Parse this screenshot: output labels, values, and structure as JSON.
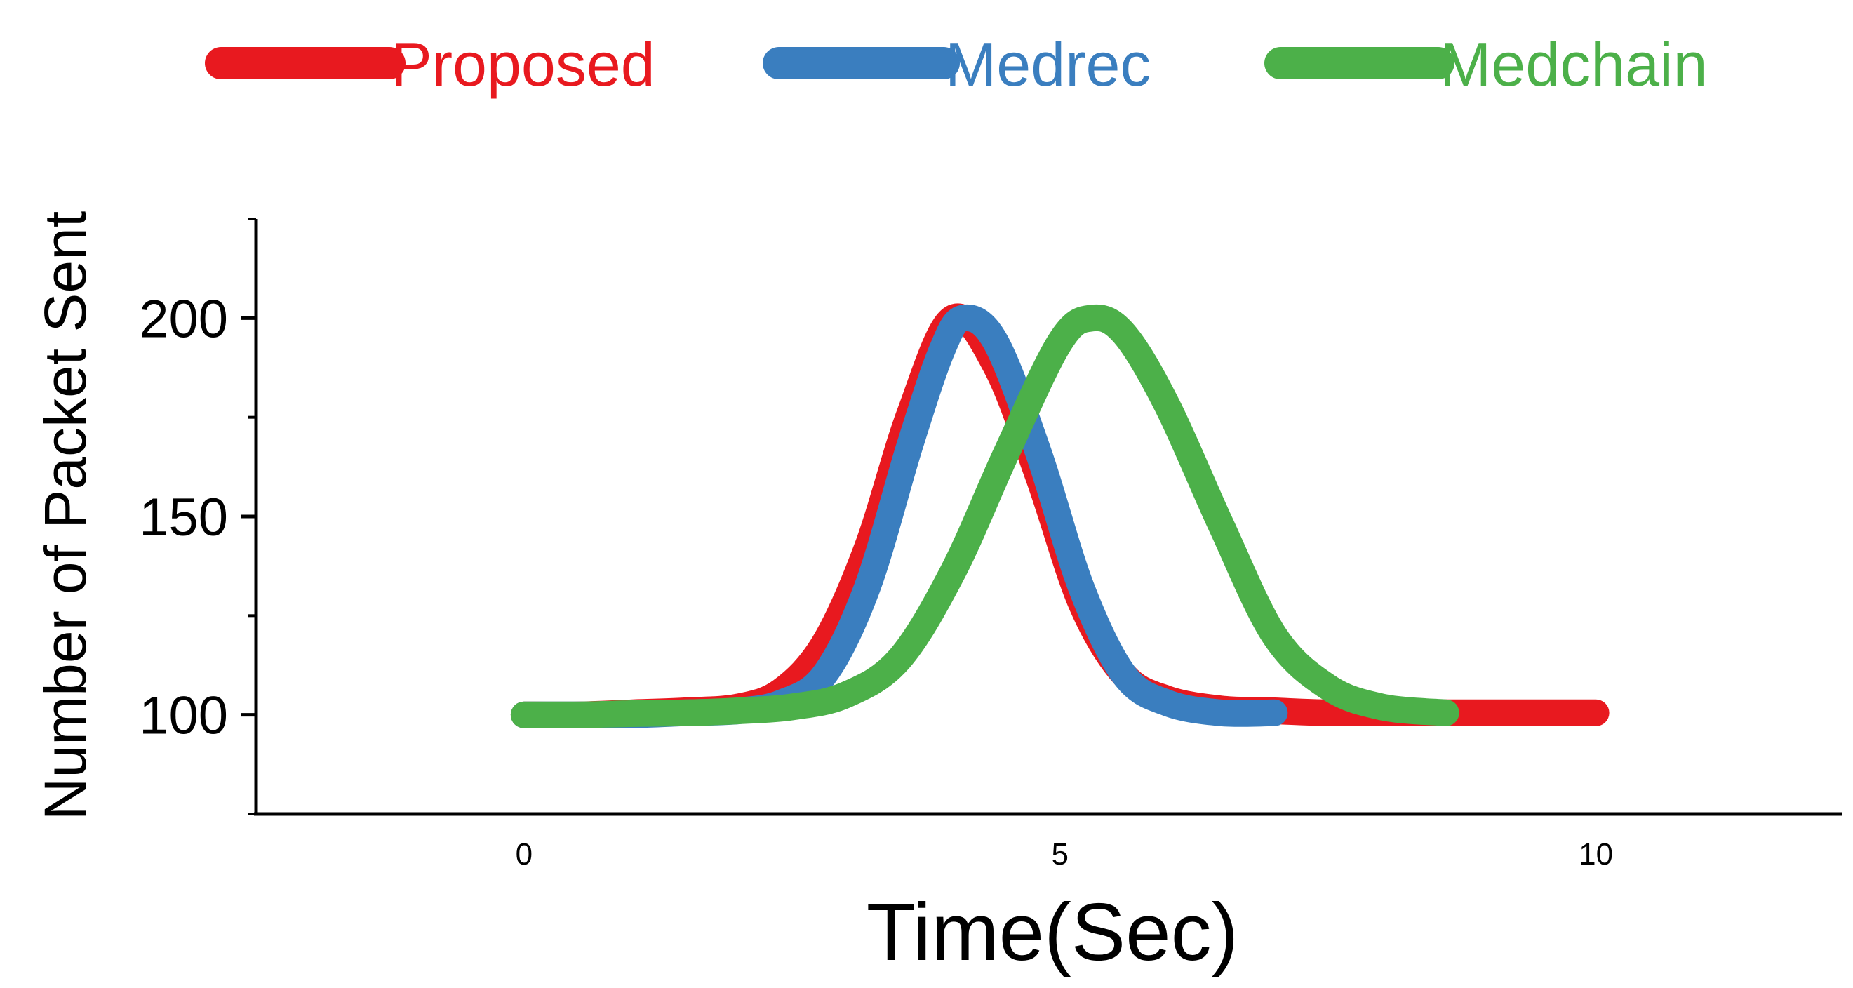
{
  "chart_data": {
    "type": "line",
    "title": "",
    "xlabel": "Time(Sec)",
    "ylabel": "Number of Packet Sent",
    "xlim": [
      -2.5,
      12.3
    ],
    "ylim": [
      75,
      225
    ],
    "x_ticks": [
      0,
      5,
      10
    ],
    "x_tick_labels": [
      "0",
      "5",
      "10"
    ],
    "y_ticks": [
      100,
      150,
      200
    ],
    "y_tick_labels": [
      "100",
      "150",
      "200"
    ],
    "y_minor_ticks": [
      75,
      125,
      175,
      225
    ],
    "grid": false,
    "legend_position": "top",
    "series": [
      {
        "name": "Proposed",
        "color": "#e8191f",
        "x": [
          0,
          0.5,
          1,
          1.5,
          2,
          2.4,
          2.8,
          3.2,
          3.6,
          4.0,
          4.4,
          4.8,
          5.2,
          5.6,
          6.0,
          6.5,
          7.0,
          7.5,
          8.0,
          8.5,
          9.0,
          9.5,
          10.0
        ],
        "y": [
          100,
          100,
          100.5,
          101,
          102,
          106,
          118,
          142,
          176,
          200,
          188,
          160,
          128,
          110,
          104,
          101.5,
          101,
          100.5,
          100.5,
          100.5,
          100.5,
          100.5,
          100.5
        ]
      },
      {
        "name": "Medrec",
        "color": "#3a7ebf",
        "x": [
          0,
          0.5,
          1,
          1.5,
          2,
          2.4,
          2.8,
          3.2,
          3.6,
          3.9,
          4.1,
          4.4,
          4.8,
          5.2,
          5.6,
          6.0,
          6.5,
          7.0
        ],
        "y": [
          100,
          100,
          100,
          100.5,
          101,
          103,
          110,
          132,
          168,
          192,
          200,
          194,
          166,
          132,
          110,
          103,
          100.5,
          100.5
        ]
      },
      {
        "name": "Medchain",
        "color": "#4cb049",
        "x": [
          0,
          0.5,
          1,
          1.5,
          2,
          2.5,
          3.0,
          3.5,
          4.0,
          4.5,
          5.0,
          5.3,
          5.6,
          6.0,
          6.5,
          7.0,
          7.5,
          8.0,
          8.6
        ],
        "y": [
          100,
          100,
          100.3,
          100.5,
          101,
          102,
          105,
          114,
          136,
          166,
          194,
          200,
          196,
          178,
          148,
          120,
          107,
          102,
          100.5
        ]
      }
    ]
  }
}
